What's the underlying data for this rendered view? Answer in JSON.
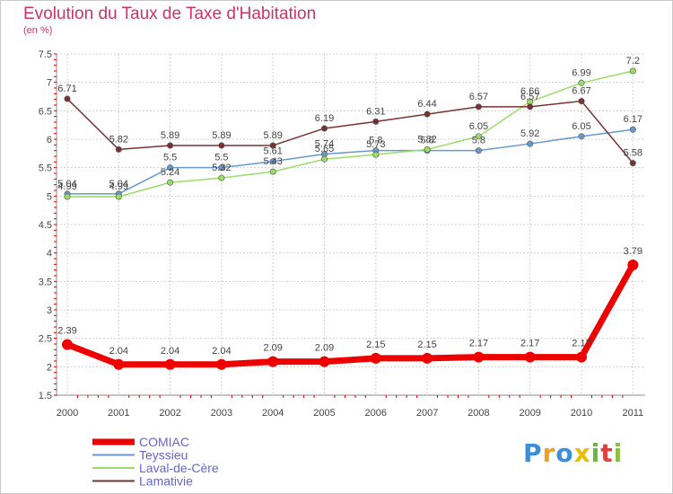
{
  "title": "Evolution du Taux de Taxe d'Habitation",
  "subtitle": "(en %)",
  "logo": {
    "text": "Proxiti",
    "colors": [
      "#3a8fd6",
      "#f0a020",
      "#3a8fd6",
      "#e8c000",
      "#66bb33",
      "#e04040",
      "#8ac040"
    ]
  },
  "chart_data": {
    "type": "line",
    "x": [
      2000,
      2001,
      2002,
      2003,
      2004,
      2005,
      2006,
      2007,
      2008,
      2009,
      2010,
      2011
    ],
    "ylim": [
      1.5,
      7.5
    ],
    "yticks": [
      "1.5",
      "2",
      "2.5",
      "3",
      "3.5",
      "4",
      "4.5",
      "5",
      "5.5",
      "6",
      "6.5",
      "7",
      "7.5"
    ],
    "grid": "horizontal dashed",
    "legend": "bottom-left",
    "series": [
      {
        "name": "COMIAC",
        "color": "#ee0000",
        "width": 7,
        "labelPos": "above",
        "values": [
          2.39,
          2.04,
          2.04,
          2.04,
          2.09,
          2.09,
          2.15,
          2.15,
          2.17,
          2.17,
          2.17,
          3.79
        ],
        "labels": [
          "2.39",
          "2.04",
          "2.04",
          "2.04",
          "2.09",
          "2.09",
          "2.15",
          "2.15",
          "2.17",
          "2.17",
          "2.17",
          "3.79"
        ]
      },
      {
        "name": "Teyssieu",
        "color": "#6699cc",
        "width": 1.5,
        "labelPos": "above",
        "values": [
          5.04,
          5.04,
          5.5,
          5.5,
          5.61,
          5.74,
          5.8,
          5.8,
          5.8,
          5.92,
          6.05,
          6.17
        ],
        "labels": [
          "5.04",
          "5.04",
          "5.5",
          "5.5",
          "5.61",
          "5.74",
          "5.8",
          "5.8",
          "5.8",
          "5.92",
          "6.05",
          "6.17"
        ]
      },
      {
        "name": "Laval-de-Cère",
        "color": "#99dd66",
        "width": 1.5,
        "labelPos": "above",
        "values": [
          4.99,
          4.99,
          5.24,
          5.32,
          5.43,
          5.65,
          5.73,
          5.82,
          6.05,
          6.66,
          6.99,
          7.2
        ],
        "labels": [
          "4.99",
          "4.99",
          "5.24",
          "5.32",
          "5.43",
          "5.65",
          "5.73",
          "5.82",
          "6.05",
          "6.66",
          "6.99",
          "7.2"
        ]
      },
      {
        "name": "Lamativie",
        "color": "#773333",
        "width": 1.5,
        "labelPos": "above",
        "values": [
          6.71,
          5.82,
          5.89,
          5.89,
          5.89,
          6.19,
          6.31,
          6.44,
          6.57,
          6.57,
          6.67,
          5.58
        ],
        "labels": [
          "6.71",
          "5.82",
          "5.89",
          "5.89",
          "5.89",
          "6.19",
          "6.31",
          "6.44",
          "6.57",
          "6.57",
          "6.67",
          "5.58"
        ]
      }
    ]
  }
}
